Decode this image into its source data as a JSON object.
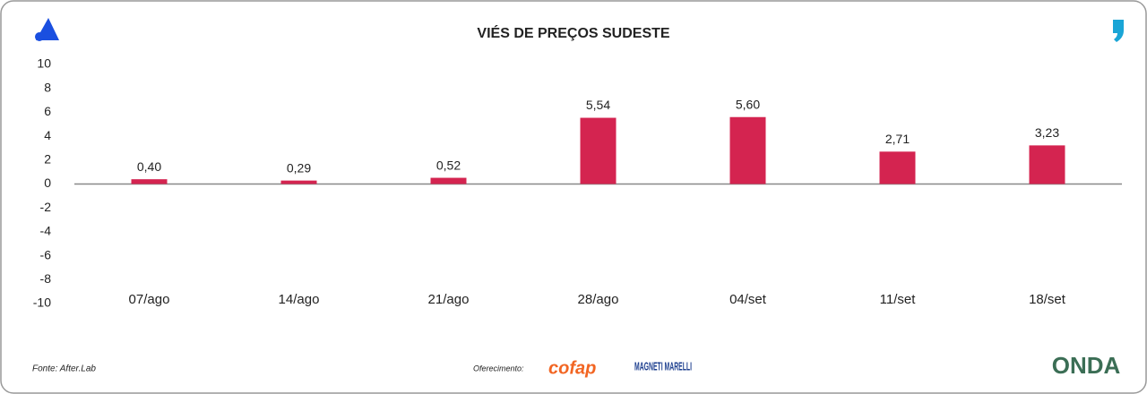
{
  "chart_data": {
    "type": "bar",
    "title": "VIÉS DE PREÇOS SUDESTE",
    "categories": [
      "07/ago",
      "14/ago",
      "21/ago",
      "28/ago",
      "04/set",
      "11/set",
      "18/set"
    ],
    "values": [
      0.4,
      0.29,
      0.52,
      5.54,
      5.6,
      2.71,
      3.23
    ],
    "value_labels": [
      "0,40",
      "0,29",
      "0,52",
      "5,54",
      "5,60",
      "2,71",
      "3,23"
    ],
    "color": "#d42450",
    "ylim": [
      -10,
      10
    ],
    "yticks": [
      -10,
      -8,
      -6,
      -4,
      -2,
      0,
      2,
      4,
      6,
      8,
      10
    ],
    "grid": false
  },
  "footer": {
    "source": "Fonte: After.Lab",
    "sponsor_label": "Oferecimento:",
    "sponsors": [
      "cofap",
      "MAGNETI MARELLI"
    ],
    "brand": "ONDA"
  }
}
